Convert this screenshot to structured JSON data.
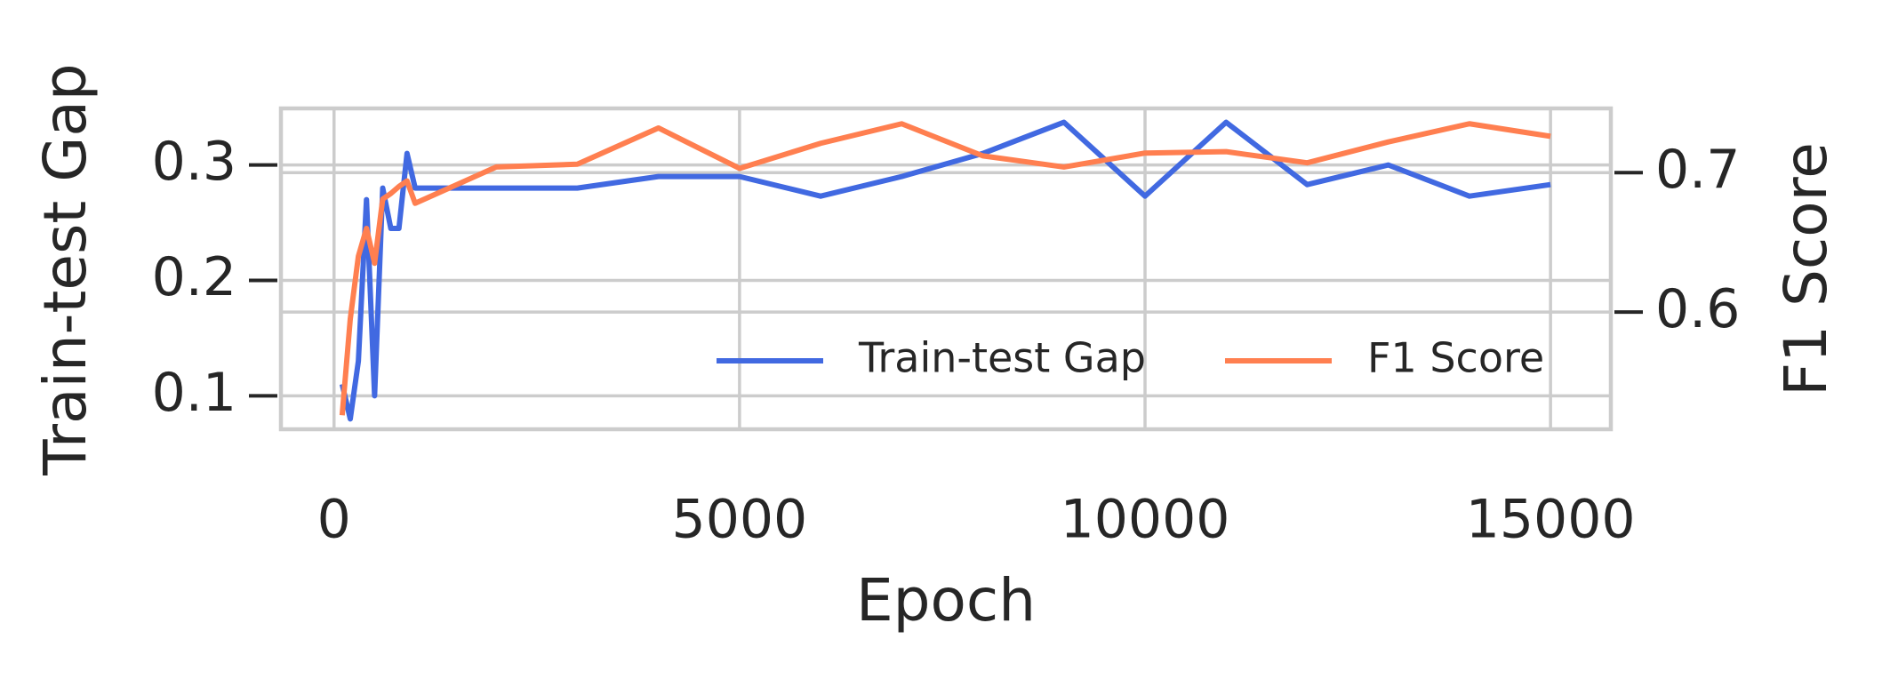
{
  "chart_data": {
    "type": "line",
    "x_label": "Epoch",
    "y_label": "Train-test Gap",
    "y2_label": "F1 Score",
    "x": [
      100,
      200,
      300,
      400,
      500,
      600,
      700,
      800,
      900,
      1000,
      2000,
      3000,
      4000,
      5000,
      6000,
      7000,
      8000,
      9000,
      10000,
      11000,
      12000,
      13000,
      14000,
      15000
    ],
    "series": [
      {
        "name": "Train-test Gap",
        "color": "#4169e1",
        "axis": "y",
        "values": [
          0.11,
          0.08,
          0.13,
          0.27,
          0.1,
          0.28,
          0.245,
          0.245,
          0.31,
          0.28,
          0.28,
          0.28,
          0.29,
          0.29,
          0.273,
          0.29,
          0.31,
          0.337,
          0.273,
          0.337,
          0.283,
          0.3,
          0.273,
          0.283
        ]
      },
      {
        "name": "F1 Score",
        "color": "#ff7f50",
        "axis": "y2",
        "values": [
          0.526,
          0.595,
          0.64,
          0.66,
          0.635,
          0.681,
          0.685,
          0.69,
          0.694,
          0.678,
          0.704,
          0.706,
          0.732,
          0.703,
          0.721,
          0.735,
          0.712,
          0.704,
          0.714,
          0.715,
          0.707,
          0.722,
          0.735,
          0.726
        ]
      }
    ],
    "xlim": [
      -655,
      15744
    ],
    "xticks": [
      0,
      5000,
      10000,
      15000
    ],
    "ylim": [
      0.071,
      0.349
    ],
    "yticks": [
      0.1,
      0.2,
      0.3
    ],
    "y2lim": [
      0.516,
      0.746
    ],
    "y2ticks": [
      0.6,
      0.7
    ],
    "grid": true,
    "legend": "lower right"
  }
}
